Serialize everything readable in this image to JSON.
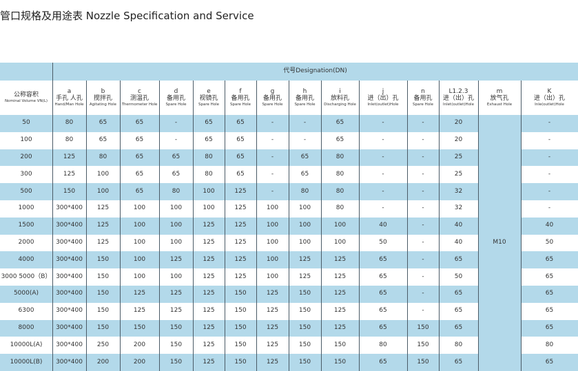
{
  "title": "管口规格及用途表 Nozzle Specification and Service",
  "table": {
    "designation": "代号Designation(DN)",
    "columns": [
      {
        "zh": "公称容积",
        "en": "Nominal Volume VN(L)"
      },
      {
        "code": "a",
        "zh": "手孔 人孔",
        "en": "Hand/Man Hole"
      },
      {
        "code": "b",
        "zh": "搅拌孔",
        "en": "Agitating Hole"
      },
      {
        "code": "c",
        "zh": "测温孔",
        "en": "Thermometer Hole"
      },
      {
        "code": "d",
        "zh": "备用孔",
        "en": "Spare Hole"
      },
      {
        "code": "e",
        "zh": "视镜孔",
        "en": "Spare Hole"
      },
      {
        "code": "f",
        "zh": "备用孔",
        "en": "Spare Hole"
      },
      {
        "code": "g",
        "zh": "备用孔",
        "en": "Spare Hole"
      },
      {
        "code": "h",
        "zh": "备用孔",
        "en": "Spare Hole"
      },
      {
        "code": "i",
        "zh": "放料孔",
        "en": "Discharging Hole"
      },
      {
        "code": "j",
        "zh": "进（出）孔",
        "en": "Inlet(outlet)Hole"
      },
      {
        "code": "n",
        "zh": "备用孔",
        "en": "Spare Hole"
      },
      {
        "code": "L1.2.3",
        "zh": "进（出）孔",
        "en": "Inlet(outlet)Hole"
      },
      {
        "code": "m",
        "zh": "放气孔",
        "en": "Exhaust Hole"
      },
      {
        "code": "K",
        "zh": "进（出）孔",
        "en": "Inle(outlet)Hole"
      }
    ],
    "m_value": "M10",
    "rows": [
      [
        "50",
        "80",
        "65",
        "65",
        "-",
        "65",
        "65",
        "-",
        "-",
        "65",
        "-",
        "-",
        "20",
        "-"
      ],
      [
        "100",
        "80",
        "65",
        "65",
        "-",
        "65",
        "65",
        "-",
        "-",
        "65",
        "-",
        "-",
        "20",
        "-"
      ],
      [
        "200",
        "125",
        "80",
        "65",
        "65",
        "80",
        "65",
        "-",
        "65",
        "80",
        "-",
        "-",
        "25",
        "-"
      ],
      [
        "300",
        "125",
        "100",
        "65",
        "65",
        "80",
        "65",
        "-",
        "65",
        "80",
        "-",
        "-",
        "25",
        "-"
      ],
      [
        "500",
        "150",
        "100",
        "65",
        "80",
        "100",
        "125",
        "-",
        "80",
        "80",
        "-",
        "-",
        "32",
        "-"
      ],
      [
        "1000",
        "300*400",
        "125",
        "100",
        "100",
        "100",
        "125",
        "100",
        "100",
        "80",
        "-",
        "-",
        "32",
        "-"
      ],
      [
        "1500",
        "300*400",
        "125",
        "100",
        "100",
        "125",
        "125",
        "100",
        "100",
        "100",
        "40",
        "-",
        "40",
        "40"
      ],
      [
        "2000",
        "300*400",
        "125",
        "100",
        "100",
        "125",
        "125",
        "100",
        "100",
        "100",
        "50",
        "-",
        "40",
        "50"
      ],
      [
        "4000",
        "300*400",
        "150",
        "100",
        "125",
        "125",
        "125",
        "100",
        "125",
        "125",
        "65",
        "-",
        "65",
        "65"
      ],
      [
        "3000  5000（B）",
        "300*400",
        "150",
        "100",
        "100",
        "125",
        "125",
        "100",
        "125",
        "125",
        "65",
        "-",
        "50",
        "65"
      ],
      [
        "5000(A)",
        "300*400",
        "150",
        "125",
        "125",
        "125",
        "150",
        "125",
        "150",
        "125",
        "65",
        "-",
        "65",
        "65"
      ],
      [
        "6300",
        "300*400",
        "150",
        "125",
        "125",
        "125",
        "150",
        "125",
        "150",
        "125",
        "65",
        "-",
        "65",
        "65"
      ],
      [
        "8000",
        "300*400",
        "150",
        "150",
        "150",
        "125",
        "150",
        "125",
        "150",
        "125",
        "65",
        "150",
        "65",
        "65"
      ],
      [
        "10000L(A)",
        "300*400",
        "250",
        "200",
        "150",
        "125",
        "150",
        "125",
        "150",
        "150",
        "80",
        "150",
        "80",
        "80"
      ],
      [
        "10000L(B)",
        "300*400",
        "200",
        "200",
        "150",
        "125",
        "150",
        "125",
        "150",
        "150",
        "65",
        "150",
        "65",
        "65"
      ]
    ]
  }
}
